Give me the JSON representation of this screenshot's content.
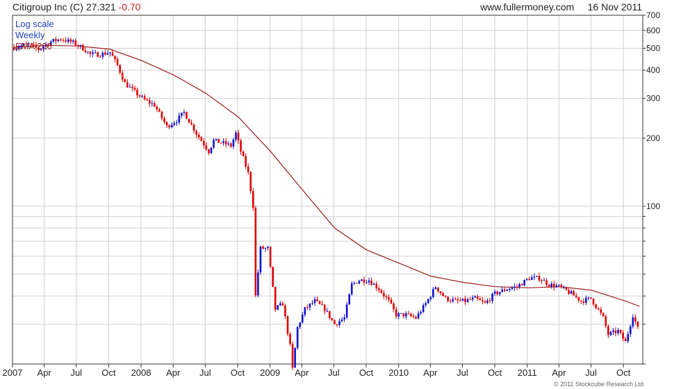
{
  "header": {
    "ticker_label": "Citigroup Inc (C)",
    "price": "27.321",
    "change": "-0.70",
    "source": "www.fullermoney.com",
    "date": "16 Nov 2011"
  },
  "legend": {
    "log_scale": "Log scale",
    "period": "Weekly",
    "ema": "EMA 200"
  },
  "copyright": "© 2011 Stockcube Research Ltd",
  "colors": {
    "up": "#1010d0",
    "down": "#e00000",
    "ema": "#9a1c1c",
    "grid": "#d0d0d0",
    "legend_blue": "#1f3fbf",
    "legend_red": "#9a1c1c"
  },
  "chart_data": {
    "type": "candlestick",
    "scale": "log",
    "period": "weekly",
    "y_ticks": [
      100,
      200,
      300,
      400,
      500,
      600,
      700
    ],
    "y_range": [
      20,
      700
    ],
    "x_range": [
      "2007-01-01",
      "2011-11-25"
    ],
    "x_ticks": [
      {
        "label": "2007",
        "date": "2007-01-01"
      },
      {
        "label": "Apr",
        "date": "2007-04-01"
      },
      {
        "label": "Jul",
        "date": "2007-07-01"
      },
      {
        "label": "Oct",
        "date": "2007-10-01"
      },
      {
        "label": "2008",
        "date": "2008-01-01"
      },
      {
        "label": "Apr",
        "date": "2008-04-01"
      },
      {
        "label": "Jul",
        "date": "2008-07-01"
      },
      {
        "label": "Oct",
        "date": "2008-10-01"
      },
      {
        "label": "2009",
        "date": "2009-01-01"
      },
      {
        "label": "Apr",
        "date": "2009-04-01"
      },
      {
        "label": "Jul",
        "date": "2009-07-01"
      },
      {
        "label": "Oct",
        "date": "2009-10-01"
      },
      {
        "label": "2010",
        "date": "2010-01-01"
      },
      {
        "label": "Apr",
        "date": "2010-04-01"
      },
      {
        "label": "Jul",
        "date": "2010-07-01"
      },
      {
        "label": "Oct",
        "date": "2010-10-01"
      },
      {
        "label": "2011",
        "date": "2011-01-01"
      },
      {
        "label": "Apr",
        "date": "2011-04-01"
      },
      {
        "label": "Jul",
        "date": "2011-07-01"
      },
      {
        "label": "Oct",
        "date": "2011-10-01"
      }
    ],
    "close_path": [
      [
        "2007-01-05",
        505
      ],
      [
        "2007-02-16",
        520
      ],
      [
        "2007-03-16",
        495
      ],
      [
        "2007-04-20",
        535
      ],
      [
        "2007-05-18",
        550
      ],
      [
        "2007-06-22",
        530
      ],
      [
        "2007-07-20",
        500
      ],
      [
        "2007-08-10",
        470
      ],
      [
        "2007-09-07",
        470
      ],
      [
        "2007-10-05",
        480
      ],
      [
        "2007-10-26",
        420
      ],
      [
        "2007-11-16",
        350
      ],
      [
        "2007-12-14",
        320
      ],
      [
        "2008-01-11",
        295
      ],
      [
        "2008-02-08",
        280
      ],
      [
        "2008-03-14",
        225
      ],
      [
        "2008-04-11",
        240
      ],
      [
        "2008-05-02",
        260
      ],
      [
        "2008-06-06",
        210
      ],
      [
        "2008-07-11",
        175
      ],
      [
        "2008-07-25",
        195
      ],
      [
        "2008-08-22",
        190
      ],
      [
        "2008-09-12",
        185
      ],
      [
        "2008-09-26",
        210
      ],
      [
        "2008-10-10",
        175
      ],
      [
        "2008-10-31",
        140
      ],
      [
        "2008-11-14",
        100
      ],
      [
        "2008-11-21",
        40
      ],
      [
        "2008-12-05",
        65
      ],
      [
        "2008-12-26",
        65
      ],
      [
        "2009-01-16",
        35
      ],
      [
        "2009-02-06",
        37
      ],
      [
        "2009-02-27",
        24
      ],
      [
        "2009-03-06",
        19
      ],
      [
        "2009-03-20",
        29
      ],
      [
        "2009-04-10",
        35
      ],
      [
        "2009-05-08",
        38
      ],
      [
        "2009-06-05",
        35
      ],
      [
        "2009-07-03",
        30
      ],
      [
        "2009-07-31",
        32
      ],
      [
        "2009-08-21",
        45
      ],
      [
        "2009-09-11",
        47
      ],
      [
        "2009-10-09",
        47
      ],
      [
        "2009-11-06",
        43
      ],
      [
        "2009-12-04",
        38
      ],
      [
        "2009-12-25",
        33
      ],
      [
        "2010-01-22",
        33
      ],
      [
        "2010-02-19",
        32
      ],
      [
        "2010-03-19",
        37
      ],
      [
        "2010-04-16",
        44
      ],
      [
        "2010-05-14",
        39
      ],
      [
        "2010-06-11",
        38
      ],
      [
        "2010-07-09",
        38
      ],
      [
        "2010-08-06",
        39
      ],
      [
        "2010-09-03",
        37
      ],
      [
        "2010-10-01",
        41
      ],
      [
        "2010-11-05",
        43
      ],
      [
        "2010-12-03",
        44
      ],
      [
        "2011-01-07",
        48
      ],
      [
        "2011-02-04",
        48
      ],
      [
        "2011-03-04",
        45
      ],
      [
        "2011-04-01",
        44
      ],
      [
        "2011-05-06",
        41
      ],
      [
        "2011-06-03",
        38
      ],
      [
        "2011-07-01",
        39
      ],
      [
        "2011-08-05",
        32
      ],
      [
        "2011-08-19",
        27
      ],
      [
        "2011-09-16",
        28
      ],
      [
        "2011-10-07",
        25
      ],
      [
        "2011-10-28",
        33
      ],
      [
        "2011-11-16",
        27.32
      ]
    ],
    "ema200": [
      [
        "2007-01-05",
        505
      ],
      [
        "2007-04-06",
        515
      ],
      [
        "2007-07-06",
        512
      ],
      [
        "2007-10-05",
        495
      ],
      [
        "2008-01-04",
        440
      ],
      [
        "2008-04-04",
        380
      ],
      [
        "2008-07-04",
        315
      ],
      [
        "2008-10-03",
        248
      ],
      [
        "2009-01-02",
        175
      ],
      [
        "2009-04-03",
        118
      ],
      [
        "2009-07-03",
        80
      ],
      [
        "2009-10-02",
        64
      ],
      [
        "2010-01-01",
        56
      ],
      [
        "2010-04-02",
        49
      ],
      [
        "2010-07-02",
        46
      ],
      [
        "2010-10-01",
        44
      ],
      [
        "2011-01-07",
        43.5
      ],
      [
        "2011-04-01",
        44
      ],
      [
        "2011-07-01",
        42.5
      ],
      [
        "2011-10-07",
        38
      ],
      [
        "2011-11-16",
        36
      ]
    ]
  }
}
